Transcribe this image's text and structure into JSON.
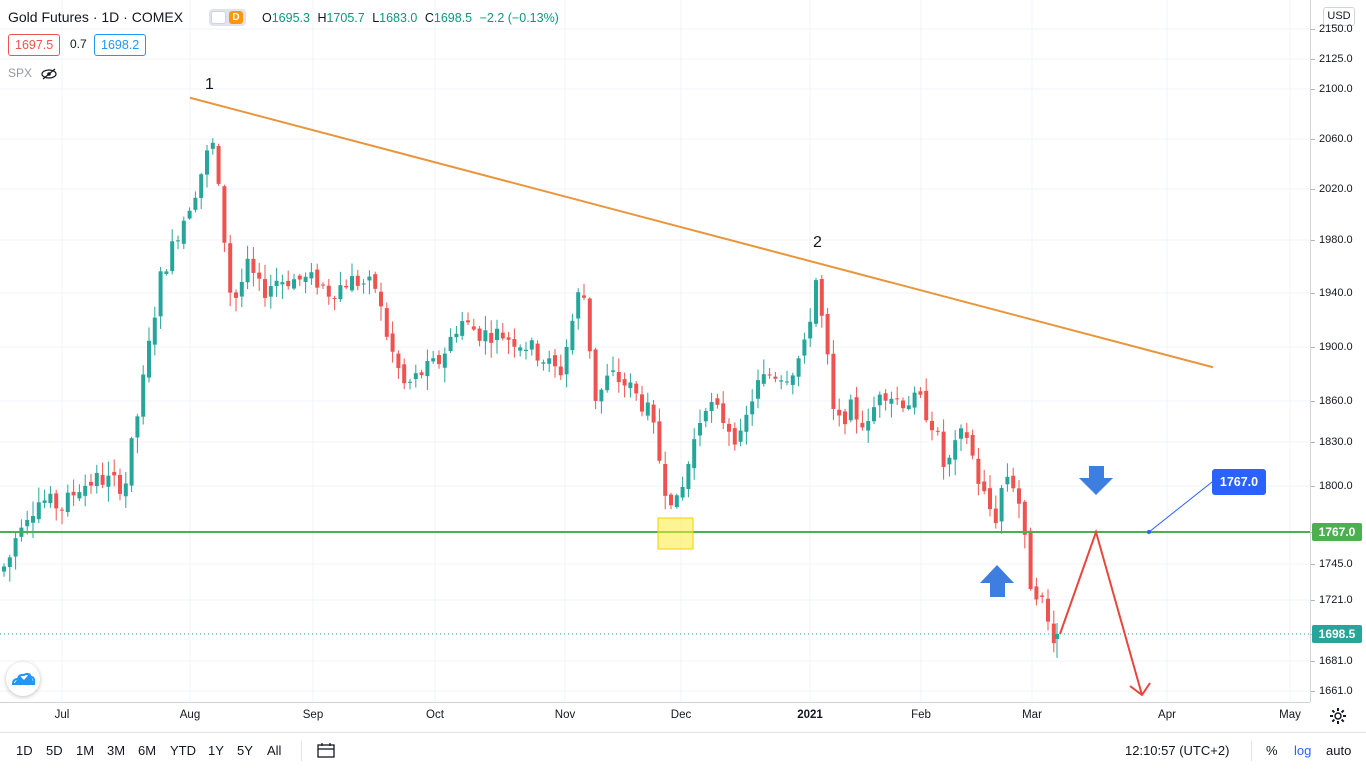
{
  "header": {
    "title": "Gold Futures · 1D · COMEX",
    "badges": [
      {
        "color": "#ff9800"
      },
      {
        "color": "#ff9800",
        "label": "D"
      }
    ],
    "ohlc": {
      "o_label": "O",
      "o": "1695.3",
      "h_label": "H",
      "h": "1705.7",
      "l_label": "L",
      "l": "1683.0",
      "c_label": "C",
      "c": "1698.5",
      "change": "−2.2 (−0.13%)"
    },
    "bid": "1697.5",
    "spread": "0.7",
    "ask": "1698.2"
  },
  "compare": {
    "symbol": "SPX",
    "icon": "eye-off-icon"
  },
  "price_axis": {
    "currency": "USD",
    "ticks": [
      "2150.0",
      "2125.0",
      "2100.0",
      "2060.0",
      "2020.0",
      "1980.0",
      "1940.0",
      "1900.0",
      "1860.0",
      "1830.0",
      "1800.0",
      "1767.0",
      "1745.0",
      "1721.0",
      "1698.5",
      "1681.0",
      "1661.0"
    ],
    "last_price_label": "1698.5",
    "level_label": "1767.0"
  },
  "time_axis": {
    "labels": [
      "Jul",
      "Aug",
      "Sep",
      "Oct",
      "Nov",
      "Dec",
      "2021",
      "Feb",
      "Mar",
      "Apr",
      "May"
    ]
  },
  "annotations": {
    "point1": "1",
    "point2": "2",
    "callout": "1767.0"
  },
  "colors": {
    "up": "#26a69a",
    "down": "#ef5350",
    "trendline": "#e8963c",
    "level": "#4caf50",
    "arrow_blue": "#3d7ee0",
    "projection": "#e8453c",
    "highlight": "#ffeb3b"
  },
  "bottom_bar": {
    "ranges": [
      "1D",
      "5D",
      "1M",
      "3M",
      "6M",
      "YTD",
      "1Y",
      "5Y",
      "All"
    ],
    "compare_icon": "calendar-range-icon",
    "clock": "12:10:57 (UTC+2)",
    "percent": "%",
    "log": "log",
    "auto": "auto"
  },
  "chart_data": {
    "type": "candlestick",
    "series_name": "Gold Futures",
    "x": "daily, Jun 2020 – Mar 2021",
    "last": {
      "open": 1695.3,
      "high": 1705.7,
      "low": 1683.0,
      "close": 1698.5
    },
    "swing_points": [
      {
        "label": "1",
        "date": "Aug 2020",
        "price": 2089
      },
      {
        "label": "2",
        "date": "Jan 2021",
        "price": 1959
      }
    ],
    "horizontal_level": 1767.0,
    "trendline": [
      {
        "date": "Aug 2020",
        "price": 2093
      },
      {
        "date": "Apr 2021",
        "price": 1885
      }
    ],
    "projection": [
      {
        "price": 1698.5
      },
      {
        "price": 1767.0
      },
      {
        "price": 1661.0
      }
    ],
    "ylim": [
      1650,
      2160
    ]
  }
}
